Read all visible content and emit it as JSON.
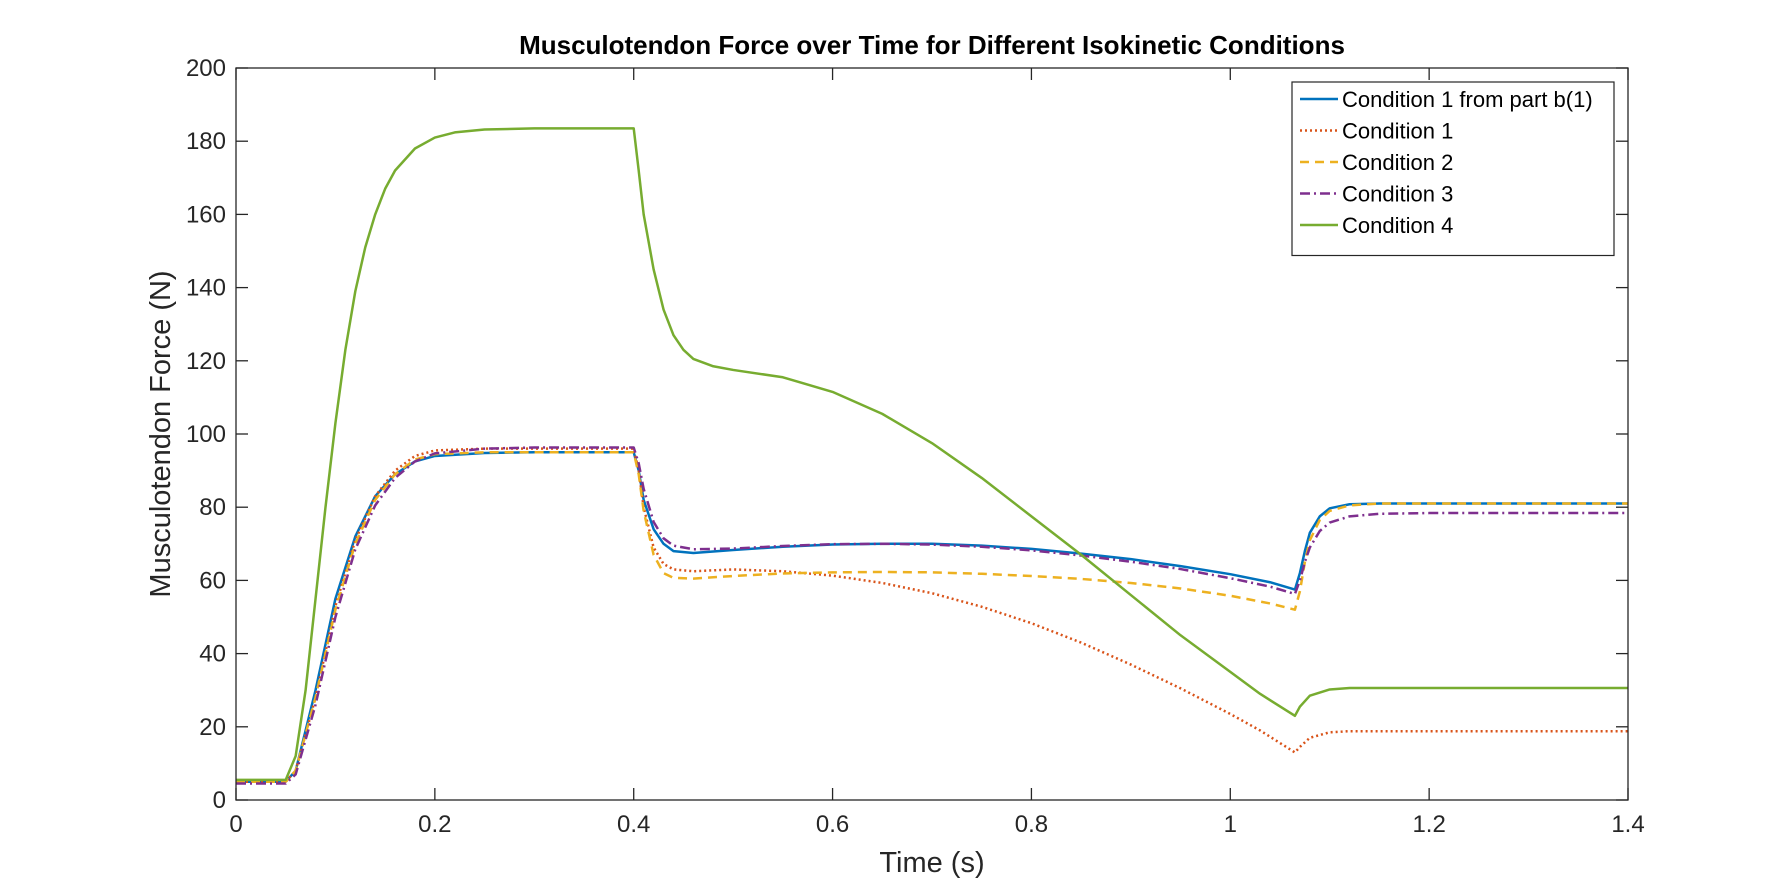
{
  "chart_data": {
    "type": "line",
    "title": "Musculotendon Force over Time for Different Isokinetic Conditions",
    "xlabel": "Time (s)",
    "ylabel": "Musculotendon Force (N)",
    "xlim": [
      0,
      1.4
    ],
    "ylim": [
      0,
      200
    ],
    "xticks": [
      0,
      0.2,
      0.4,
      0.6,
      0.8,
      1,
      1.2,
      1.4
    ],
    "xtick_labels": [
      "0",
      "0.2",
      "0.4",
      "0.6",
      "0.8",
      "1",
      "1.2",
      "1.4"
    ],
    "yticks": [
      0,
      20,
      40,
      60,
      80,
      100,
      120,
      140,
      160,
      180,
      200
    ],
    "ytick_labels": [
      "0",
      "20",
      "40",
      "60",
      "80",
      "100",
      "120",
      "140",
      "160",
      "180",
      "200"
    ],
    "grid": false,
    "legend_position": "top-right",
    "series": [
      {
        "name": "Condition 1 from part b(1)",
        "color": "#0072BD",
        "style": "solid",
        "points": [
          [
            0,
            5
          ],
          [
            0.05,
            5
          ],
          [
            0.06,
            8
          ],
          [
            0.08,
            30
          ],
          [
            0.1,
            55
          ],
          [
            0.12,
            72
          ],
          [
            0.14,
            83
          ],
          [
            0.16,
            89
          ],
          [
            0.18,
            92.5
          ],
          [
            0.2,
            94
          ],
          [
            0.25,
            94.8
          ],
          [
            0.3,
            95
          ],
          [
            0.4,
            95
          ],
          [
            0.405,
            90
          ],
          [
            0.41,
            82
          ],
          [
            0.42,
            74
          ],
          [
            0.43,
            70
          ],
          [
            0.44,
            68
          ],
          [
            0.46,
            67.5
          ],
          [
            0.5,
            68.3
          ],
          [
            0.55,
            69.2
          ],
          [
            0.6,
            69.8
          ],
          [
            0.65,
            70
          ],
          [
            0.7,
            70
          ],
          [
            0.75,
            69.5
          ],
          [
            0.8,
            68.6
          ],
          [
            0.85,
            67.3
          ],
          [
            0.9,
            65.8
          ],
          [
            0.95,
            63.9
          ],
          [
            1.0,
            61.7
          ],
          [
            1.04,
            59.5
          ],
          [
            1.065,
            57.5
          ],
          [
            1.07,
            62
          ],
          [
            1.075,
            68
          ],
          [
            1.08,
            73
          ],
          [
            1.09,
            77.5
          ],
          [
            1.1,
            79.7
          ],
          [
            1.12,
            80.8
          ],
          [
            1.15,
            81
          ],
          [
            1.4,
            81
          ]
        ]
      },
      {
        "name": "Condition 1",
        "color": "#D95319",
        "style": "dotted",
        "points": [
          [
            0,
            5
          ],
          [
            0.05,
            5
          ],
          [
            0.06,
            8
          ],
          [
            0.08,
            28
          ],
          [
            0.1,
            53
          ],
          [
            0.12,
            71
          ],
          [
            0.14,
            83
          ],
          [
            0.16,
            90
          ],
          [
            0.18,
            94
          ],
          [
            0.2,
            95.5
          ],
          [
            0.25,
            96
          ],
          [
            0.3,
            96
          ],
          [
            0.4,
            96
          ],
          [
            0.405,
            90
          ],
          [
            0.41,
            80
          ],
          [
            0.42,
            69
          ],
          [
            0.43,
            64.5
          ],
          [
            0.44,
            63
          ],
          [
            0.46,
            62.5
          ],
          [
            0.5,
            63
          ],
          [
            0.55,
            62.5
          ],
          [
            0.6,
            61.3
          ],
          [
            0.65,
            59.3
          ],
          [
            0.7,
            56.5
          ],
          [
            0.75,
            52.8
          ],
          [
            0.8,
            48.3
          ],
          [
            0.85,
            43
          ],
          [
            0.9,
            37
          ],
          [
            0.95,
            30.5
          ],
          [
            1.0,
            23.5
          ],
          [
            1.03,
            19
          ],
          [
            1.065,
            13
          ],
          [
            1.07,
            14.5
          ],
          [
            1.08,
            17
          ],
          [
            1.1,
            18.5
          ],
          [
            1.12,
            18.8
          ],
          [
            1.4,
            18.8
          ]
        ]
      },
      {
        "name": "Condition 2",
        "color": "#EDB120",
        "style": "dashed",
        "points": [
          [
            0,
            5
          ],
          [
            0.05,
            5
          ],
          [
            0.06,
            8
          ],
          [
            0.08,
            28
          ],
          [
            0.1,
            52
          ],
          [
            0.12,
            70
          ],
          [
            0.14,
            82
          ],
          [
            0.16,
            89
          ],
          [
            0.18,
            93
          ],
          [
            0.2,
            94.5
          ],
          [
            0.25,
            95
          ],
          [
            0.3,
            95
          ],
          [
            0.4,
            95
          ],
          [
            0.405,
            89
          ],
          [
            0.41,
            79
          ],
          [
            0.42,
            67
          ],
          [
            0.43,
            62
          ],
          [
            0.44,
            60.7
          ],
          [
            0.46,
            60.5
          ],
          [
            0.5,
            61.2
          ],
          [
            0.55,
            61.9
          ],
          [
            0.6,
            62.2
          ],
          [
            0.65,
            62.3
          ],
          [
            0.7,
            62.2
          ],
          [
            0.75,
            61.8
          ],
          [
            0.8,
            61.2
          ],
          [
            0.85,
            60.4
          ],
          [
            0.9,
            59.3
          ],
          [
            0.95,
            57.8
          ],
          [
            1.0,
            55.8
          ],
          [
            1.04,
            53.7
          ],
          [
            1.065,
            52
          ],
          [
            1.07,
            57
          ],
          [
            1.075,
            65
          ],
          [
            1.08,
            71
          ],
          [
            1.09,
            76.5
          ],
          [
            1.1,
            79
          ],
          [
            1.12,
            80.5
          ],
          [
            1.15,
            81
          ],
          [
            1.4,
            81
          ]
        ]
      },
      {
        "name": "Condition 3",
        "color": "#7E2F8E",
        "style": "dashdot",
        "points": [
          [
            0,
            4.5
          ],
          [
            0.05,
            4.5
          ],
          [
            0.06,
            7
          ],
          [
            0.08,
            26
          ],
          [
            0.1,
            50
          ],
          [
            0.12,
            68.5
          ],
          [
            0.14,
            80.5
          ],
          [
            0.16,
            88
          ],
          [
            0.18,
            92.5
          ],
          [
            0.2,
            94.7
          ],
          [
            0.25,
            96
          ],
          [
            0.3,
            96.3
          ],
          [
            0.4,
            96.3
          ],
          [
            0.405,
            92
          ],
          [
            0.41,
            85
          ],
          [
            0.42,
            76
          ],
          [
            0.43,
            71.5
          ],
          [
            0.44,
            69.5
          ],
          [
            0.46,
            68.5
          ],
          [
            0.5,
            68.7
          ],
          [
            0.55,
            69.4
          ],
          [
            0.6,
            69.9
          ],
          [
            0.65,
            70
          ],
          [
            0.7,
            69.8
          ],
          [
            0.75,
            69.2
          ],
          [
            0.8,
            68.2
          ],
          [
            0.85,
            66.8
          ],
          [
            0.9,
            65.1
          ],
          [
            0.95,
            63.1
          ],
          [
            1.0,
            60.6
          ],
          [
            1.04,
            58.3
          ],
          [
            1.065,
            56.3
          ],
          [
            1.07,
            60
          ],
          [
            1.075,
            65
          ],
          [
            1.08,
            69
          ],
          [
            1.09,
            73.5
          ],
          [
            1.1,
            75.8
          ],
          [
            1.12,
            77.5
          ],
          [
            1.15,
            78.2
          ],
          [
            1.2,
            78.4
          ],
          [
            1.4,
            78.4
          ]
        ]
      },
      {
        "name": "Condition 4",
        "color": "#77AC30",
        "style": "solid",
        "points": [
          [
            0,
            5.5
          ],
          [
            0.05,
            5.5
          ],
          [
            0.06,
            12
          ],
          [
            0.07,
            30
          ],
          [
            0.08,
            55
          ],
          [
            0.09,
            80
          ],
          [
            0.1,
            103
          ],
          [
            0.11,
            123
          ],
          [
            0.12,
            139
          ],
          [
            0.13,
            151
          ],
          [
            0.14,
            160
          ],
          [
            0.15,
            167
          ],
          [
            0.16,
            172
          ],
          [
            0.18,
            178
          ],
          [
            0.2,
            181
          ],
          [
            0.22,
            182.4
          ],
          [
            0.25,
            183.2
          ],
          [
            0.3,
            183.5
          ],
          [
            0.4,
            183.5
          ],
          [
            0.405,
            172
          ],
          [
            0.41,
            160
          ],
          [
            0.42,
            145
          ],
          [
            0.43,
            134
          ],
          [
            0.44,
            127
          ],
          [
            0.45,
            123
          ],
          [
            0.46,
            120.5
          ],
          [
            0.48,
            118.5
          ],
          [
            0.5,
            117.5
          ],
          [
            0.55,
            115.5
          ],
          [
            0.6,
            111.5
          ],
          [
            0.65,
            105.5
          ],
          [
            0.7,
            97.5
          ],
          [
            0.75,
            88
          ],
          [
            0.8,
            77.5
          ],
          [
            0.85,
            67
          ],
          [
            0.9,
            56
          ],
          [
            0.95,
            45
          ],
          [
            1.0,
            35
          ],
          [
            1.03,
            29
          ],
          [
            1.065,
            23
          ],
          [
            1.07,
            25.5
          ],
          [
            1.08,
            28.5
          ],
          [
            1.1,
            30.2
          ],
          [
            1.12,
            30.6
          ],
          [
            1.4,
            30.6
          ]
        ]
      }
    ]
  }
}
